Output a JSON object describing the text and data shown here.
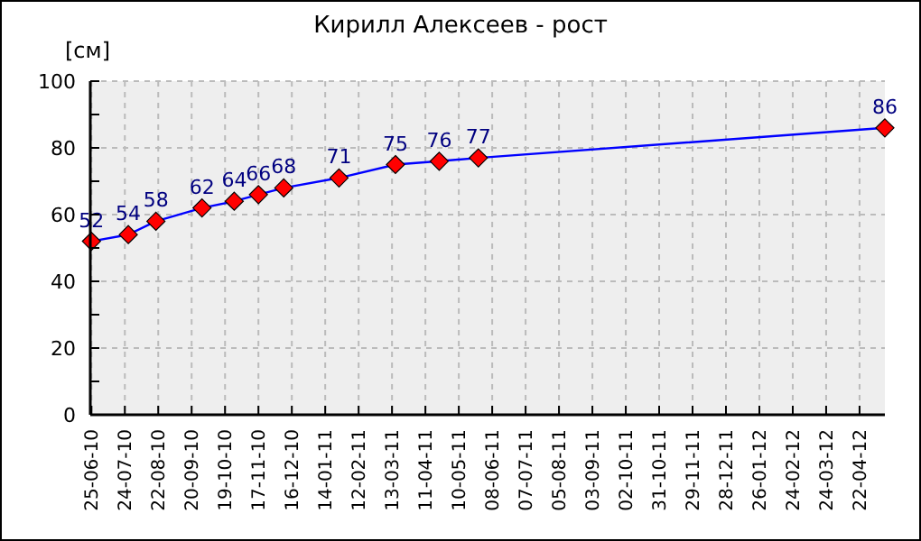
{
  "chart_data": {
    "type": "line",
    "title": "Кирилл Алексеев - рост",
    "ylabel": "[см]",
    "x": [
      "2010-06-25",
      "2010-07-27",
      "2010-08-20",
      "2010-09-29",
      "2010-10-27",
      "2010-11-17",
      "2010-12-09",
      "2011-01-26",
      "2011-03-16",
      "2011-04-23",
      "2011-05-27",
      "2012-05-14"
    ],
    "series": [
      {
        "color": "#0000ff",
        "values": [
          52,
          54,
          58,
          62,
          64,
          66,
          68,
          71,
          75,
          76,
          77,
          86
        ]
      }
    ],
    "xlim": [
      "2010-06-24",
      "2012-05-14"
    ],
    "xticks": [
      {
        "value": "2010-06-25",
        "label": "25-06-10"
      },
      {
        "value": "2010-07-24",
        "label": "24-07-10"
      },
      {
        "value": "2010-08-22",
        "label": "22-08-10"
      },
      {
        "value": "2010-09-20",
        "label": "20-09-10"
      },
      {
        "value": "2010-10-19",
        "label": "19-10-10"
      },
      {
        "value": "2010-11-17",
        "label": "17-11-10"
      },
      {
        "value": "2010-12-16",
        "label": "16-12-10"
      },
      {
        "value": "2011-01-14",
        "label": "14-01-11"
      },
      {
        "value": "2011-02-12",
        "label": "12-02-11"
      },
      {
        "value": "2011-03-13",
        "label": "13-03-11"
      },
      {
        "value": "2011-04-11",
        "label": "11-04-11"
      },
      {
        "value": "2011-05-10",
        "label": "10-05-11"
      },
      {
        "value": "2011-06-08",
        "label": "08-06-11"
      },
      {
        "value": "2011-07-07",
        "label": "07-07-11"
      },
      {
        "value": "2011-08-05",
        "label": "05-08-11"
      },
      {
        "value": "2011-09-03",
        "label": "03-09-11"
      },
      {
        "value": "2011-10-02",
        "label": "02-10-11"
      },
      {
        "value": "2011-10-31",
        "label": "31-10-11"
      },
      {
        "value": "2011-11-29",
        "label": "29-11-11"
      },
      {
        "value": "2011-12-28",
        "label": "28-12-11"
      },
      {
        "value": "2012-01-26",
        "label": "26-01-12"
      },
      {
        "value": "2012-02-24",
        "label": "24-02-12"
      },
      {
        "value": "2012-03-24",
        "label": "24-03-12"
      },
      {
        "value": "2012-04-22",
        "label": "22-04-12"
      }
    ],
    "ylim": [
      0,
      100
    ],
    "yticks": [
      0,
      {
        "value": 10,
        "label": null
      },
      20,
      {
        "value": 30,
        "label": null
      },
      40,
      {
        "value": 50,
        "label": null
      },
      60,
      {
        "value": 70,
        "label": null
      },
      80,
      {
        "value": 90,
        "label": null
      },
      100
    ],
    "grid": true,
    "marker": "diamond",
    "line_style": "solid",
    "data_labels": true
  }
}
